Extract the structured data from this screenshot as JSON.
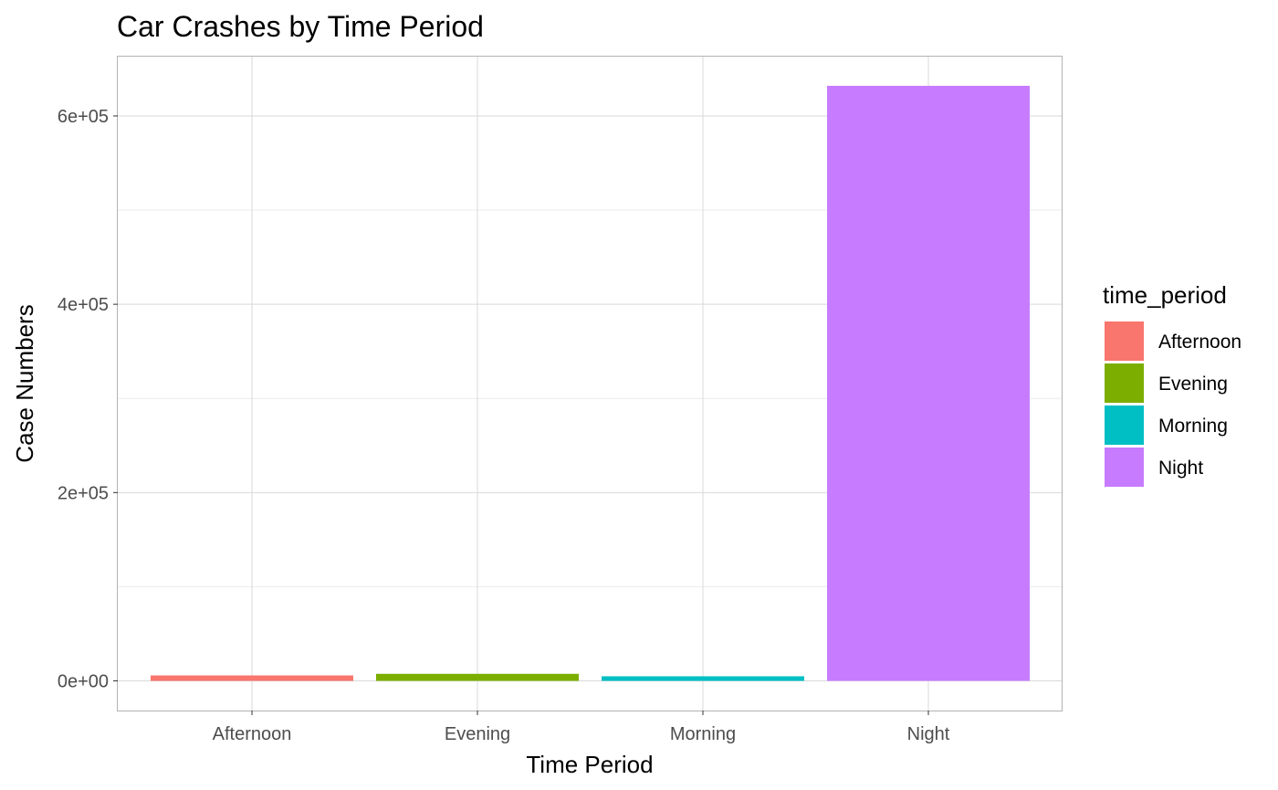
{
  "chart_data": {
    "type": "bar",
    "title": "Car Crashes by Time Period",
    "xlabel": "Time Period",
    "ylabel": "Case Numbers",
    "categories": [
      "Afternoon",
      "Evening",
      "Morning",
      "Night"
    ],
    "values": [
      5800,
      7500,
      4900,
      632000
    ],
    "colors": [
      "#F8766D",
      "#7CAE00",
      "#00BFC4",
      "#C77CFF"
    ],
    "ylim": [
      -31500,
      663000
    ],
    "yticks": [
      0,
      200000,
      400000,
      600000
    ],
    "ytick_labels": [
      "0e+00",
      "2e+05",
      "4e+05",
      "6e+05"
    ],
    "grid": true,
    "legend": {
      "title": "time_period",
      "position": "right",
      "entries": [
        "Afternoon",
        "Evening",
        "Morning",
        "Night"
      ]
    }
  }
}
